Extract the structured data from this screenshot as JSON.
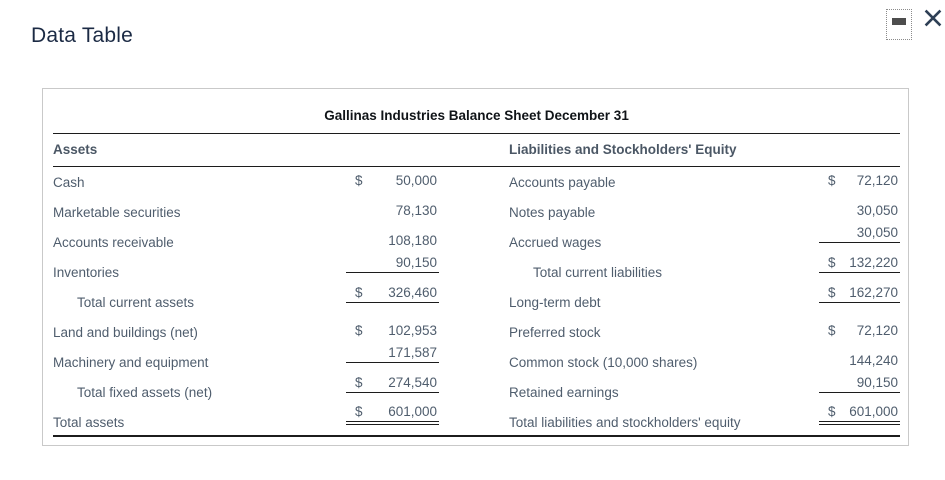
{
  "window": {
    "title": "Data Table",
    "minimize_icon": "horizontal-bar",
    "close_icon": "x-cross"
  },
  "table": {
    "title": "Gallinas Industries Balance Sheet December 31",
    "left": {
      "header": "Assets",
      "rows": [
        {
          "label": "Cash",
          "currency": "$",
          "value": "50,000",
          "underline": "none",
          "indent": false
        },
        {
          "label": "Marketable securities",
          "currency": "",
          "value": "78,130",
          "underline": "none",
          "indent": false
        },
        {
          "label": "Accounts receivable",
          "currency": "",
          "value": "108,180",
          "underline": "none",
          "indent": false
        },
        {
          "label": "Inventories",
          "currency": "",
          "value": "90,150",
          "underline": "single",
          "indent": false
        },
        {
          "label": "Total current assets",
          "currency": "$",
          "value": "326,460",
          "underline": "single",
          "indent": true
        },
        {
          "label": "Land and buildings (net)",
          "currency": "$",
          "value": "102,953",
          "underline": "none",
          "indent": false
        },
        {
          "label": "Machinery and equipment",
          "currency": "",
          "value": "171,587",
          "underline": "single",
          "indent": false
        },
        {
          "label": "Total fixed assets (net)",
          "currency": "$",
          "value": "274,540",
          "underline": "single",
          "indent": true
        },
        {
          "label": "Total assets",
          "currency": "$",
          "value": "601,000",
          "underline": "double",
          "indent": false
        }
      ]
    },
    "right": {
      "header": "Liabilities and Stockholders' Equity",
      "rows": [
        {
          "label": "Accounts payable",
          "currency": "$",
          "value": "72,120",
          "underline": "none",
          "indent": false
        },
        {
          "label": "Notes payable",
          "currency": "",
          "value": "30,050",
          "underline": "none",
          "indent": false
        },
        {
          "label": "Accrued wages",
          "currency": "",
          "value": "30,050",
          "underline": "single",
          "indent": false
        },
        {
          "label": "Total current liabilities",
          "currency": "$",
          "value": "132,220",
          "underline": "single",
          "indent": true
        },
        {
          "label": "Long-term debt",
          "currency": "$",
          "value": "162,270",
          "underline": "single",
          "indent": false
        },
        {
          "label": "Preferred stock",
          "currency": "$",
          "value": "72,120",
          "underline": "none",
          "indent": false
        },
        {
          "label": "Common stock (10,000 shares)",
          "currency": "",
          "value": "144,240",
          "underline": "none",
          "indent": false
        },
        {
          "label": "Retained earnings",
          "currency": "",
          "value": "90,150",
          "underline": "single",
          "indent": false
        },
        {
          "label": "Total liabilities and stockholders' equity",
          "currency": "$",
          "value": "601,000",
          "underline": "double",
          "indent": false
        }
      ]
    }
  },
  "colors": {
    "text": "#4f5d6d",
    "header_text": "#4b5765",
    "window_title": "#1b2a44",
    "rule": "#1c1c1c",
    "card_border": "#c9c9c9",
    "close_icon": "#2e3f55",
    "minimize_bar": "#4d4d4d"
  }
}
